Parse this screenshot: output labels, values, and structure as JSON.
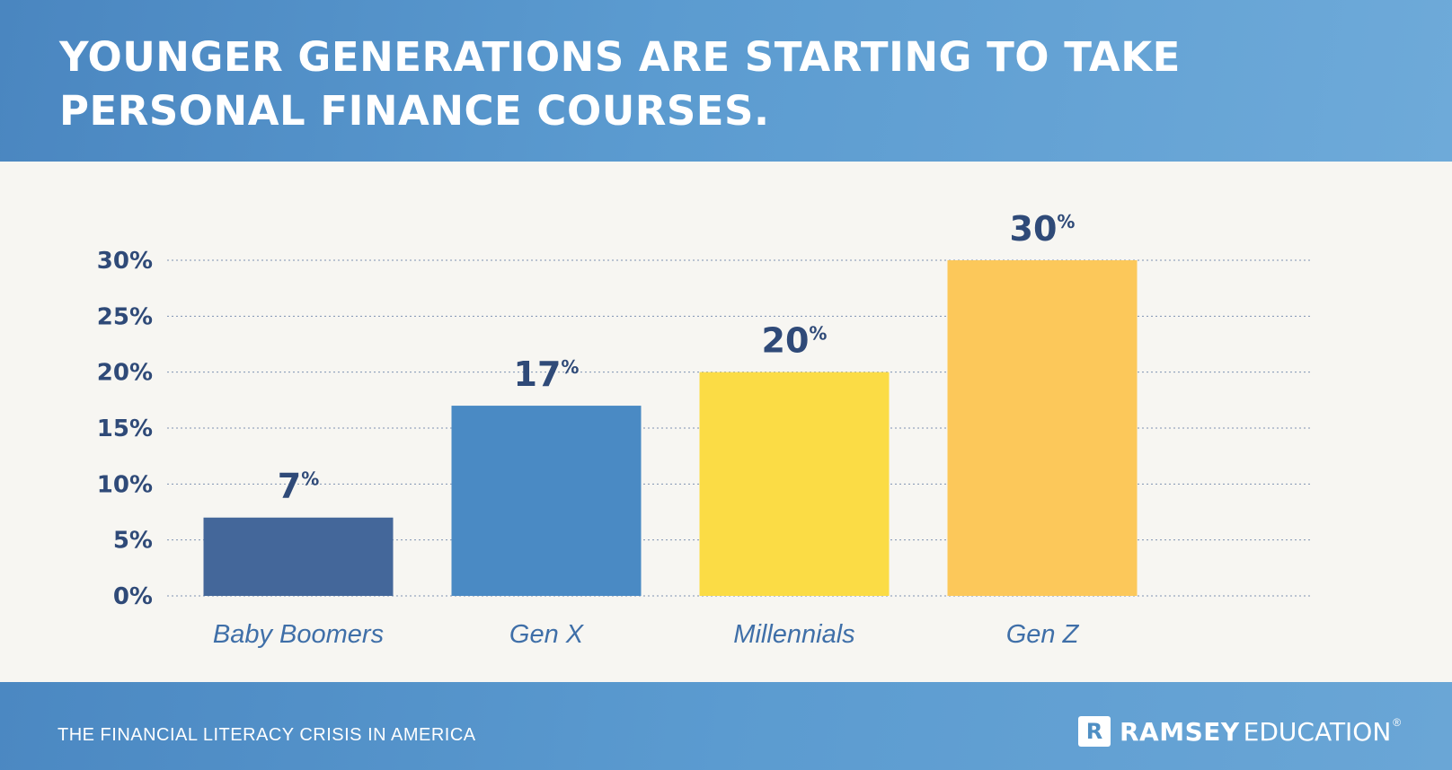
{
  "header": {
    "title": "YOUNGER GENERATIONS ARE STARTING TO TAKE PERSONAL FINANCE COURSES."
  },
  "footer": {
    "source": "THE FINANCIAL LITERACY CRISIS IN AMERICA",
    "brand_mark": "R",
    "brand_bold": "RAMSEY",
    "brand_light": "EDUCATION",
    "brand_tm": "®"
  },
  "chart_data": {
    "type": "bar",
    "title": "YOUNGER GENERATIONS ARE STARTING TO TAKE PERSONAL FINANCE COURSES.",
    "xlabel": "",
    "ylabel": "",
    "categories": [
      "Baby Boomers",
      "Gen X",
      "Millennials",
      "Gen Z"
    ],
    "values": [
      7,
      17,
      20,
      30
    ],
    "value_labels": [
      "7",
      "17",
      "20",
      "30"
    ],
    "value_suffix": "%",
    "ylim": [
      0,
      30
    ],
    "yticks": [
      0,
      5,
      10,
      15,
      20,
      25,
      30
    ],
    "ytick_labels": [
      "0%",
      "5%",
      "10%",
      "15%",
      "20%",
      "25%",
      "30%"
    ],
    "grid": true,
    "bar_colors": [
      "#44679a",
      "#4a8ac4",
      "#fbdc45",
      "#fcc85a"
    ]
  }
}
